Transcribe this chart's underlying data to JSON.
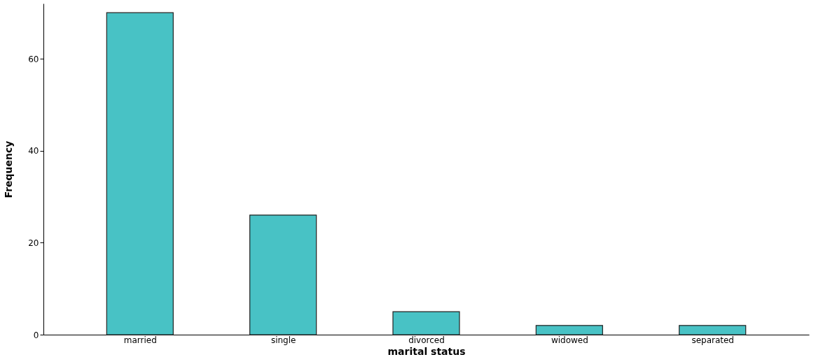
{
  "chart_data": {
    "type": "bar",
    "xlabel": "marital status",
    "ylabel": "Frequency",
    "categories": [
      "married",
      "single",
      "divorced",
      "widowed",
      "separated"
    ],
    "series": [
      {
        "color": "#48c2c5",
        "values": [
          70,
          26,
          5,
          2,
          2
        ]
      }
    ],
    "ylim": [
      0,
      72
    ],
    "yticks": [
      0,
      20,
      40,
      60
    ],
    "grid": false
  }
}
